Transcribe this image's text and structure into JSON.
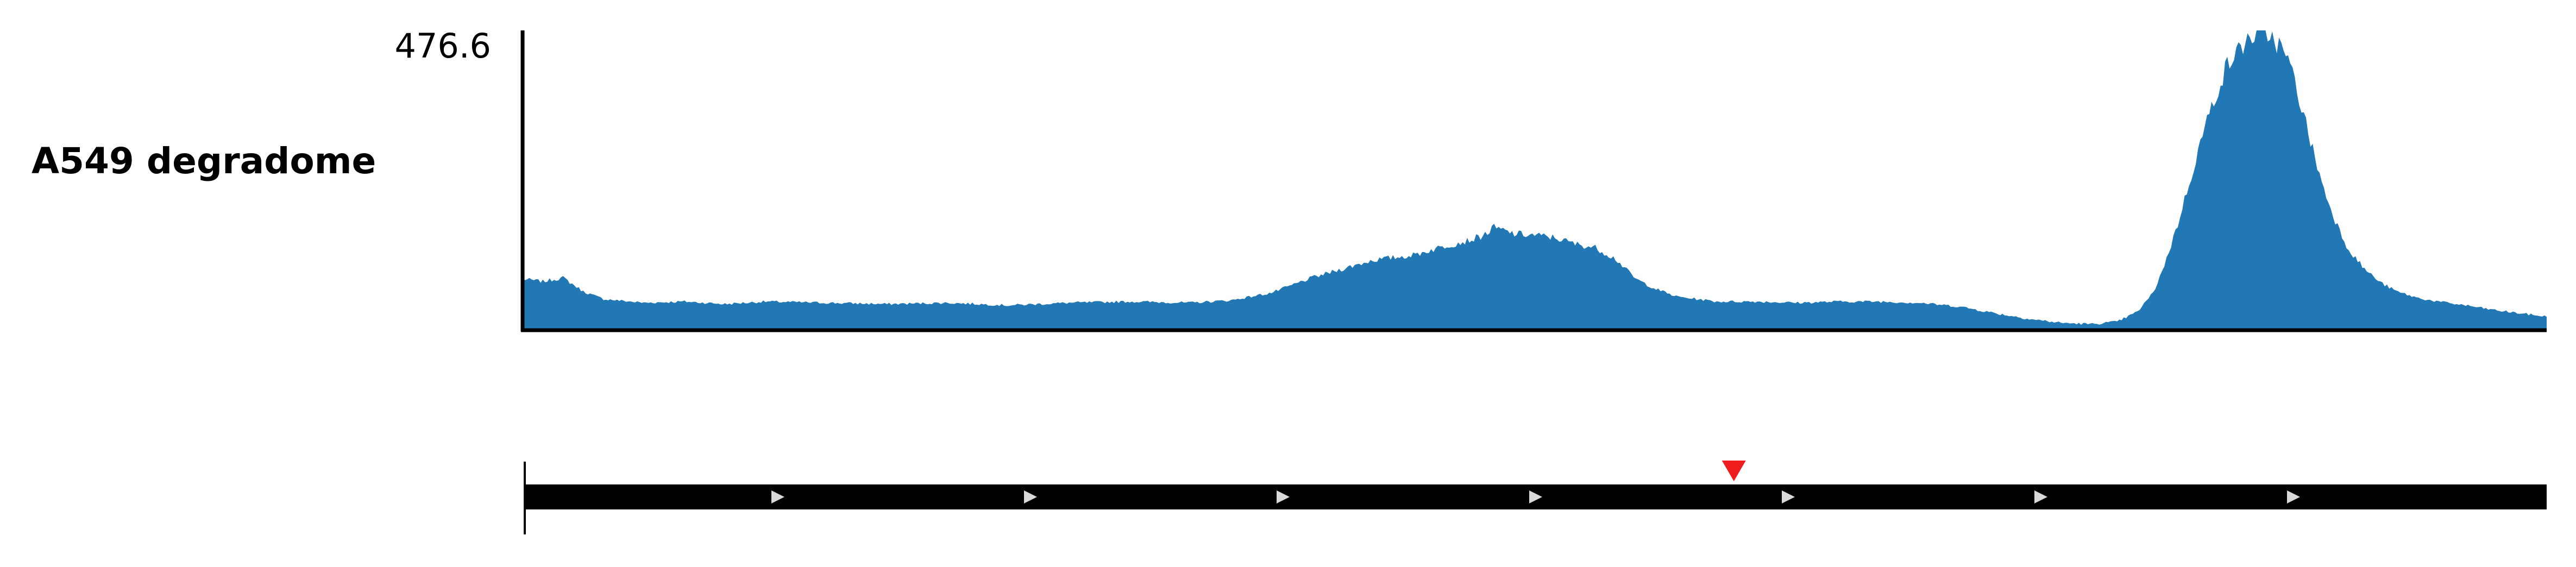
{
  "track": {
    "label": "A549 degradome",
    "ymax_label": "476.6"
  },
  "chart_data": {
    "type": "area",
    "title": "",
    "series_label": "A549 degradome",
    "ylim": [
      0,
      476.6
    ],
    "xlim": [
      0,
      1
    ],
    "grid": false,
    "color": "#2178b5",
    "profile": [
      [
        0.0,
        80
      ],
      [
        0.01,
        76
      ],
      [
        0.02,
        82
      ],
      [
        0.03,
        60
      ],
      [
        0.04,
        48
      ],
      [
        0.06,
        42
      ],
      [
        0.08,
        44
      ],
      [
        0.1,
        40
      ],
      [
        0.12,
        44
      ],
      [
        0.15,
        42
      ],
      [
        0.18,
        40
      ],
      [
        0.21,
        42
      ],
      [
        0.24,
        38
      ],
      [
        0.27,
        42
      ],
      [
        0.3,
        44
      ],
      [
        0.33,
        42
      ],
      [
        0.35,
        46
      ],
      [
        0.37,
        58
      ],
      [
        0.39,
        82
      ],
      [
        0.405,
        96
      ],
      [
        0.42,
        110
      ],
      [
        0.44,
        118
      ],
      [
        0.455,
        132
      ],
      [
        0.468,
        142
      ],
      [
        0.475,
        150
      ],
      [
        0.48,
        162
      ],
      [
        0.49,
        152
      ],
      [
        0.5,
        150
      ],
      [
        0.51,
        146
      ],
      [
        0.52,
        136
      ],
      [
        0.53,
        130
      ],
      [
        0.54,
        112
      ],
      [
        0.55,
        80
      ],
      [
        0.56,
        64
      ],
      [
        0.57,
        52
      ],
      [
        0.59,
        44
      ],
      [
        0.61,
        44
      ],
      [
        0.63,
        42
      ],
      [
        0.65,
        44
      ],
      [
        0.67,
        44
      ],
      [
        0.69,
        42
      ],
      [
        0.71,
        36
      ],
      [
        0.73,
        24
      ],
      [
        0.745,
        16
      ],
      [
        0.76,
        10
      ],
      [
        0.775,
        8
      ],
      [
        0.788,
        12
      ],
      [
        0.798,
        28
      ],
      [
        0.806,
        60
      ],
      [
        0.812,
        110
      ],
      [
        0.818,
        170
      ],
      [
        0.824,
        240
      ],
      [
        0.83,
        310
      ],
      [
        0.836,
        370
      ],
      [
        0.842,
        420
      ],
      [
        0.848,
        445
      ],
      [
        0.852,
        462
      ],
      [
        0.856,
        470
      ],
      [
        0.86,
        476.6
      ],
      [
        0.864,
        468
      ],
      [
        0.868,
        452
      ],
      [
        0.872,
        430
      ],
      [
        0.876,
        392
      ],
      [
        0.88,
        340
      ],
      [
        0.885,
        280
      ],
      [
        0.89,
        222
      ],
      [
        0.896,
        170
      ],
      [
        0.902,
        128
      ],
      [
        0.91,
        96
      ],
      [
        0.918,
        74
      ],
      [
        0.926,
        60
      ],
      [
        0.936,
        50
      ],
      [
        0.946,
        44
      ],
      [
        0.96,
        38
      ],
      [
        0.975,
        30
      ],
      [
        0.99,
        24
      ],
      [
        1.0,
        20
      ]
    ],
    "tail_after_note": "coordinate space of profile is normalized across the visible track width"
  },
  "gene_model": {
    "strand": "+",
    "strand_arrow_count": 7,
    "marker": {
      "position": 0.598,
      "color": "#ee1c1c"
    },
    "colors": {
      "body": "#000000",
      "arrow": "#d9d9d9"
    }
  }
}
